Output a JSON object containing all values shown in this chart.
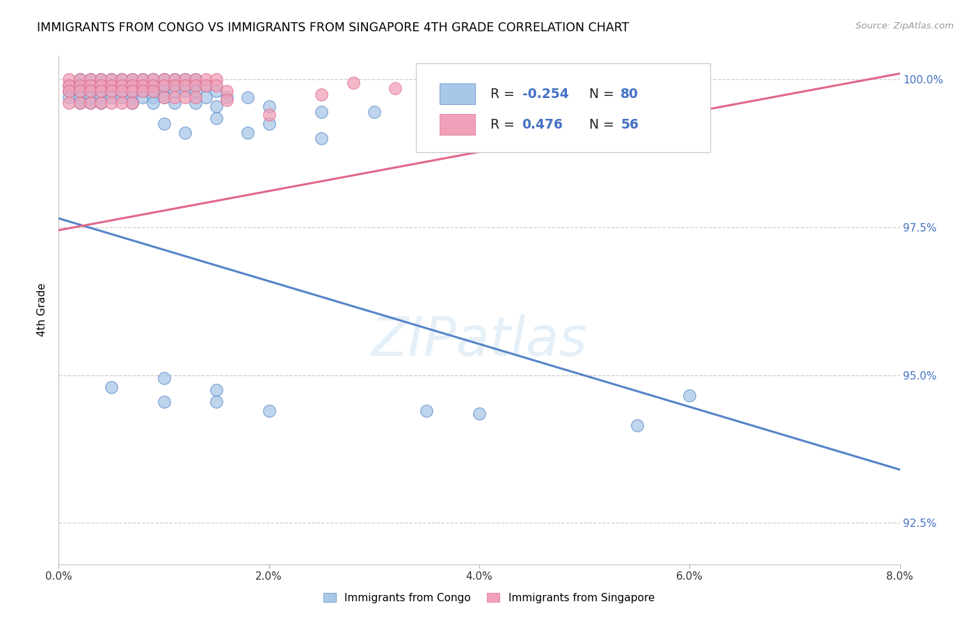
{
  "title": "IMMIGRANTS FROM CONGO VS IMMIGRANTS FROM SINGAPORE 4TH GRADE CORRELATION CHART",
  "source": "Source: ZipAtlas.com",
  "ylabel": "4th Grade",
  "legend_congo": "Immigrants from Congo",
  "legend_singapore": "Immigrants from Singapore",
  "R_congo": -0.254,
  "N_congo": 80,
  "R_singapore": 0.476,
  "N_singapore": 56,
  "color_congo": "#a8c8e8",
  "color_singapore": "#f0a0b8",
  "color_line_congo": "#5585c8",
  "color_line_singapore": "#e06888",
  "watermark": "ZIPatlas",
  "xlim": [
    0.0,
    0.08
  ],
  "ylim": [
    0.918,
    1.004
  ],
  "yticks": [
    0.925,
    0.95,
    0.975,
    1.0
  ],
  "ylabels": [
    "92.5%",
    "95.0%",
    "97.5%",
    "100.0%"
  ],
  "xticks": [
    0.0,
    0.02,
    0.04,
    0.06,
    0.08
  ],
  "xlabels": [
    "0.0%",
    "2.0%",
    "4.0%",
    "6.0%",
    "8.0%"
  ],
  "congo_x": [
    0.002,
    0.003,
    0.004,
    0.005,
    0.006,
    0.007,
    0.008,
    0.009,
    0.01,
    0.011,
    0.012,
    0.013,
    0.001,
    0.002,
    0.003,
    0.004,
    0.005,
    0.006,
    0.007,
    0.008,
    0.009,
    0.01,
    0.011,
    0.012,
    0.013,
    0.014,
    0.001,
    0.002,
    0.003,
    0.004,
    0.005,
    0.006,
    0.007,
    0.008,
    0.009,
    0.01,
    0.011,
    0.012,
    0.013,
    0.015,
    0.001,
    0.002,
    0.003,
    0.004,
    0.005,
    0.006,
    0.007,
    0.008,
    0.009,
    0.01,
    0.014,
    0.016,
    0.018,
    0.002,
    0.003,
    0.004,
    0.007,
    0.009,
    0.011,
    0.013,
    0.015,
    0.02,
    0.025,
    0.03,
    0.015,
    0.02,
    0.01,
    0.012,
    0.018,
    0.025,
    0.01,
    0.015,
    0.06,
    0.005,
    0.01,
    0.015,
    0.02,
    0.035,
    0.04,
    0.055
  ],
  "congo_y": [
    1.0,
    1.0,
    1.0,
    1.0,
    1.0,
    1.0,
    1.0,
    1.0,
    1.0,
    1.0,
    1.0,
    1.0,
    0.999,
    0.999,
    0.999,
    0.999,
    0.999,
    0.999,
    0.999,
    0.999,
    0.999,
    0.999,
    0.999,
    0.999,
    0.999,
    0.999,
    0.998,
    0.998,
    0.998,
    0.998,
    0.998,
    0.998,
    0.998,
    0.998,
    0.998,
    0.998,
    0.998,
    0.998,
    0.998,
    0.998,
    0.997,
    0.997,
    0.997,
    0.997,
    0.997,
    0.997,
    0.997,
    0.997,
    0.997,
    0.997,
    0.997,
    0.997,
    0.997,
    0.996,
    0.996,
    0.996,
    0.996,
    0.996,
    0.996,
    0.996,
    0.9955,
    0.9955,
    0.9945,
    0.9945,
    0.9935,
    0.9925,
    0.9925,
    0.991,
    0.991,
    0.99,
    0.9495,
    0.9475,
    0.9465,
    0.948,
    0.9455,
    0.9455,
    0.944,
    0.944,
    0.9435,
    0.9415
  ],
  "singapore_x": [
    0.001,
    0.002,
    0.003,
    0.004,
    0.005,
    0.006,
    0.007,
    0.008,
    0.009,
    0.01,
    0.011,
    0.012,
    0.013,
    0.014,
    0.015,
    0.001,
    0.002,
    0.003,
    0.004,
    0.005,
    0.006,
    0.007,
    0.008,
    0.009,
    0.01,
    0.011,
    0.012,
    0.013,
    0.014,
    0.015,
    0.016,
    0.001,
    0.002,
    0.003,
    0.004,
    0.005,
    0.006,
    0.007,
    0.008,
    0.009,
    0.01,
    0.011,
    0.012,
    0.013,
    0.016,
    0.001,
    0.002,
    0.003,
    0.004,
    0.005,
    0.006,
    0.007,
    0.028,
    0.032,
    0.025,
    0.02
  ],
  "singapore_y": [
    1.0,
    1.0,
    1.0,
    1.0,
    1.0,
    1.0,
    1.0,
    1.0,
    1.0,
    1.0,
    1.0,
    1.0,
    1.0,
    1.0,
    1.0,
    0.999,
    0.999,
    0.999,
    0.999,
    0.999,
    0.999,
    0.999,
    0.999,
    0.999,
    0.999,
    0.999,
    0.999,
    0.999,
    0.999,
    0.999,
    0.998,
    0.998,
    0.998,
    0.998,
    0.998,
    0.998,
    0.998,
    0.998,
    0.998,
    0.998,
    0.997,
    0.997,
    0.997,
    0.997,
    0.9965,
    0.996,
    0.996,
    0.996,
    0.996,
    0.996,
    0.996,
    0.996,
    0.9995,
    0.9985,
    0.9975,
    0.994
  ],
  "trend_congo_x0": 0.0,
  "trend_congo_y0": 0.9765,
  "trend_congo_x1": 0.08,
  "trend_congo_y1": 0.934,
  "trend_sing_x0": 0.0,
  "trend_sing_y0": 0.9745,
  "trend_sing_x1": 0.08,
  "trend_sing_y1": 1.001
}
